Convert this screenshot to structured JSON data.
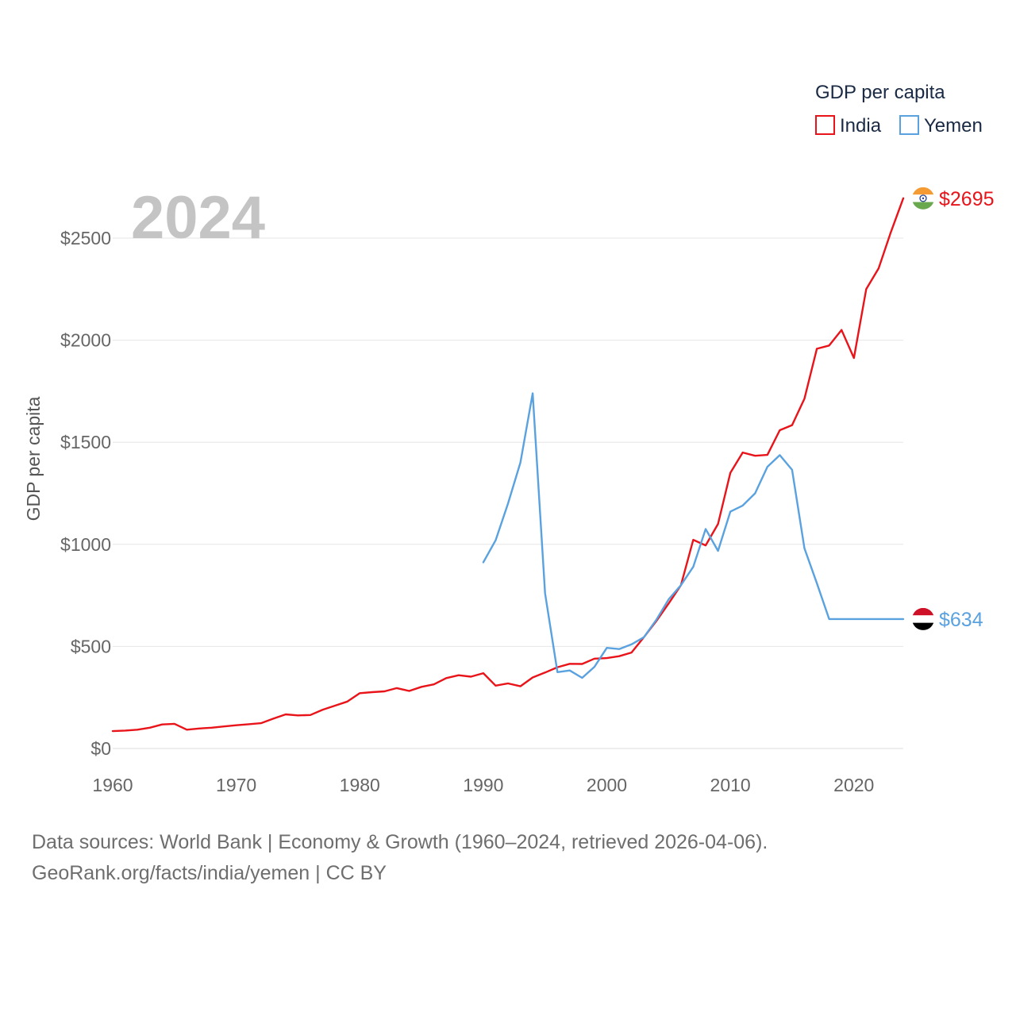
{
  "chart_data": {
    "type": "line",
    "year_label": "2024",
    "ylabel": "GDP per capita",
    "xlim": [
      1960,
      2024
    ],
    "ylim": [
      0,
      2700
    ],
    "x_ticks": [
      1960,
      1970,
      1980,
      1990,
      2000,
      2010,
      2020
    ],
    "y_ticks": [
      {
        "value": 0,
        "label": "$0"
      },
      {
        "value": 500,
        "label": "$500"
      },
      {
        "value": 1000,
        "label": "$1000"
      },
      {
        "value": 1500,
        "label": "$1500"
      },
      {
        "value": 2000,
        "label": "$2000"
      },
      {
        "value": 2500,
        "label": "$2500"
      }
    ],
    "legend": {
      "title": "GDP per capita",
      "position": "top-right"
    },
    "series": [
      {
        "name": "India",
        "color": "#e8141a",
        "flag": "india-flag",
        "end_label": "$2695",
        "x": [
          1960,
          1961,
          1962,
          1963,
          1964,
          1965,
          1966,
          1967,
          1968,
          1969,
          1970,
          1971,
          1972,
          1973,
          1974,
          1975,
          1976,
          1977,
          1978,
          1979,
          1980,
          1981,
          1982,
          1983,
          1984,
          1985,
          1986,
          1987,
          1988,
          1989,
          1990,
          1991,
          1992,
          1993,
          1994,
          1995,
          1996,
          1997,
          1998,
          1999,
          2000,
          2001,
          2002,
          2003,
          2004,
          2005,
          2006,
          2007,
          2008,
          2009,
          2010,
          2011,
          2012,
          2013,
          2014,
          2015,
          2016,
          2017,
          2018,
          2019,
          2020,
          2021,
          2022,
          2023,
          2024
        ],
        "values": [
          85,
          88,
          92,
          102,
          118,
          121,
          92,
          98,
          102,
          108,
          114,
          119,
          124,
          146,
          167,
          162,
          164,
          190,
          210,
          230,
          271,
          276,
          280,
          296,
          282,
          302,
          314,
          345,
          359,
          352,
          369,
          308,
          319,
          305,
          348,
          372,
          398,
          415,
          414,
          440,
          443,
          452,
          470,
          545,
          624,
          710,
          800,
          1022,
          995,
          1100,
          1350,
          1450,
          1434,
          1438,
          1559,
          1584,
          1714,
          1958,
          1974,
          2050,
          1913,
          2250,
          2352,
          2530,
          2695
        ]
      },
      {
        "name": "Yemen",
        "color": "#5aa2df",
        "flag": "yemen-flag",
        "end_label": "$634",
        "x": [
          1990,
          1991,
          1992,
          1993,
          1994,
          1995,
          1996,
          1997,
          1998,
          1999,
          2000,
          2001,
          2002,
          2003,
          2004,
          2005,
          2006,
          2007,
          2008,
          2009,
          2010,
          2011,
          2012,
          2013,
          2014,
          2015,
          2016,
          2017,
          2018,
          2019,
          2020,
          2021,
          2022,
          2023,
          2024
        ],
        "values": [
          912,
          1020,
          1200,
          1400,
          1740,
          760,
          374,
          382,
          346,
          400,
          493,
          487,
          510,
          545,
          630,
          730,
          800,
          890,
          1075,
          968,
          1160,
          1190,
          1250,
          1380,
          1437,
          1365,
          980,
          810,
          634,
          634,
          634,
          634,
          634,
          634,
          634
        ]
      }
    ]
  },
  "footer": {
    "line1": "Data sources: World Bank | Economy & Growth (1960–2024, retrieved 2026-04-06).",
    "line2": "GeoRank.org/facts/india/yemen | CC BY"
  }
}
